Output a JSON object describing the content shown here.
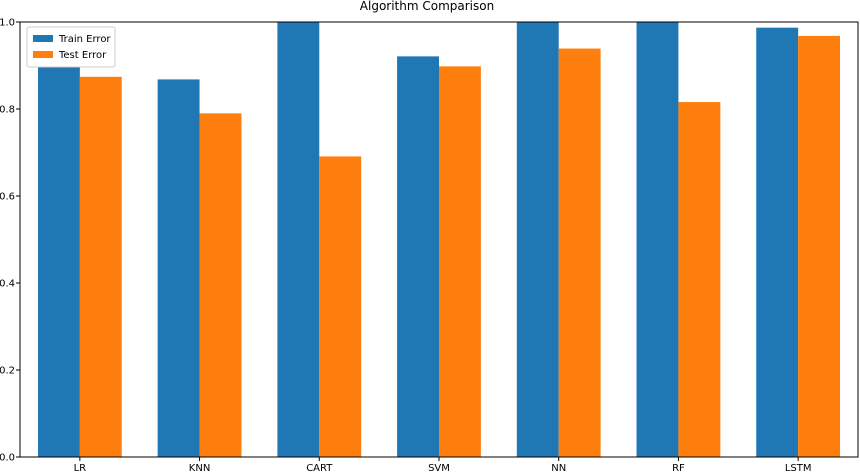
{
  "chart_data": {
    "type": "bar",
    "title": "Algorithm Comparison",
    "xlabel": "",
    "ylabel": "",
    "categories": [
      "LR",
      "KNN",
      "CART",
      "SVM",
      "NN",
      "RF",
      "LSTM"
    ],
    "series": [
      {
        "name": "Train Error",
        "color": "#1f77b4",
        "values": [
          0.897,
          0.868,
          1.0,
          0.921,
          1.0,
          1.0,
          0.987
        ]
      },
      {
        "name": "Test Error",
        "color": "#ff7f0e",
        "values": [
          0.874,
          0.79,
          0.691,
          0.898,
          0.939,
          0.816,
          0.968
        ]
      }
    ],
    "ylim": [
      0,
      1.0
    ],
    "yticks": [
      "0.0",
      "0.2",
      "0.4",
      "0.6",
      "0.8",
      "1.0"
    ],
    "grid": false,
    "legend": "top-left"
  }
}
